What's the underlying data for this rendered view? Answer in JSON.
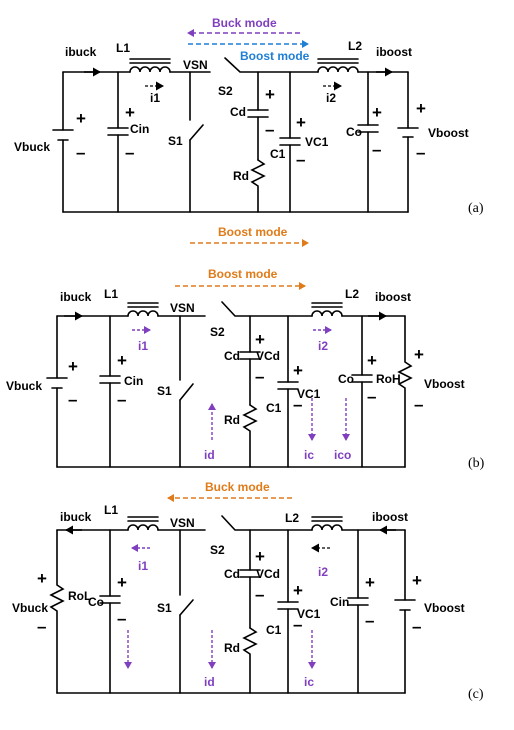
{
  "colors": {
    "purple": "#7f3fbf",
    "blue": "#1f7fd6",
    "orange": "#e07b1a",
    "wire": "#000000"
  },
  "panel_a": {
    "caption": "(a)",
    "buck_mode": "Buck mode",
    "boost_mode": "Boost mode",
    "labels": {
      "ibuck": "ibuck",
      "L1": "L1",
      "VSN": "VSN",
      "L2": "L2",
      "iboost": "iboost",
      "i1": "i1",
      "i2": "i2",
      "Vbuck": "Vbuck",
      "Cin": "Cin",
      "S1": "S1",
      "S2": "S2",
      "Cd": "Cd",
      "Rd": "Rd",
      "C1": "C1",
      "VC1": "VC1",
      "Co": "Co",
      "Vboost": "Vboost"
    },
    "below_mode": "Boost mode"
  },
  "panel_b": {
    "caption": "(b)",
    "boost_mode": "Boost mode",
    "labels": {
      "ibuck": "ibuck",
      "L1": "L1",
      "VSN": "VSN",
      "L2": "L2",
      "iboost": "iboost",
      "i1": "i1",
      "i2": "i2",
      "Vbuck": "Vbuck",
      "Cin": "Cin",
      "S1": "S1",
      "S2": "S2",
      "Cd": "Cd",
      "VCd": "VCd",
      "Rd": "Rd",
      "C1": "C1",
      "VC1": "VC1",
      "Co": "Co",
      "RoH": "RoH",
      "Vboost": "Vboost",
      "id": "id",
      "ic": "ic",
      "ico": "ico"
    }
  },
  "panel_c": {
    "caption": "(c)",
    "buck_mode": "Buck mode",
    "labels": {
      "ibuck": "ibuck",
      "L1": "L1",
      "VSN": "VSN",
      "L2": "L2",
      "iboost": "iboost",
      "i1": "i1",
      "i2": "i2",
      "Vbuck": "Vbuck",
      "RoL": "RoL",
      "Co": "Co",
      "S1": "S1",
      "S2": "S2",
      "Cd": "Cd",
      "VCd": "VCd",
      "Rd": "Rd",
      "C1": "C1",
      "VC1": "VC1",
      "Cin": "Cin",
      "Vboost": "Vboost",
      "id": "id",
      "ic": "ic"
    }
  }
}
